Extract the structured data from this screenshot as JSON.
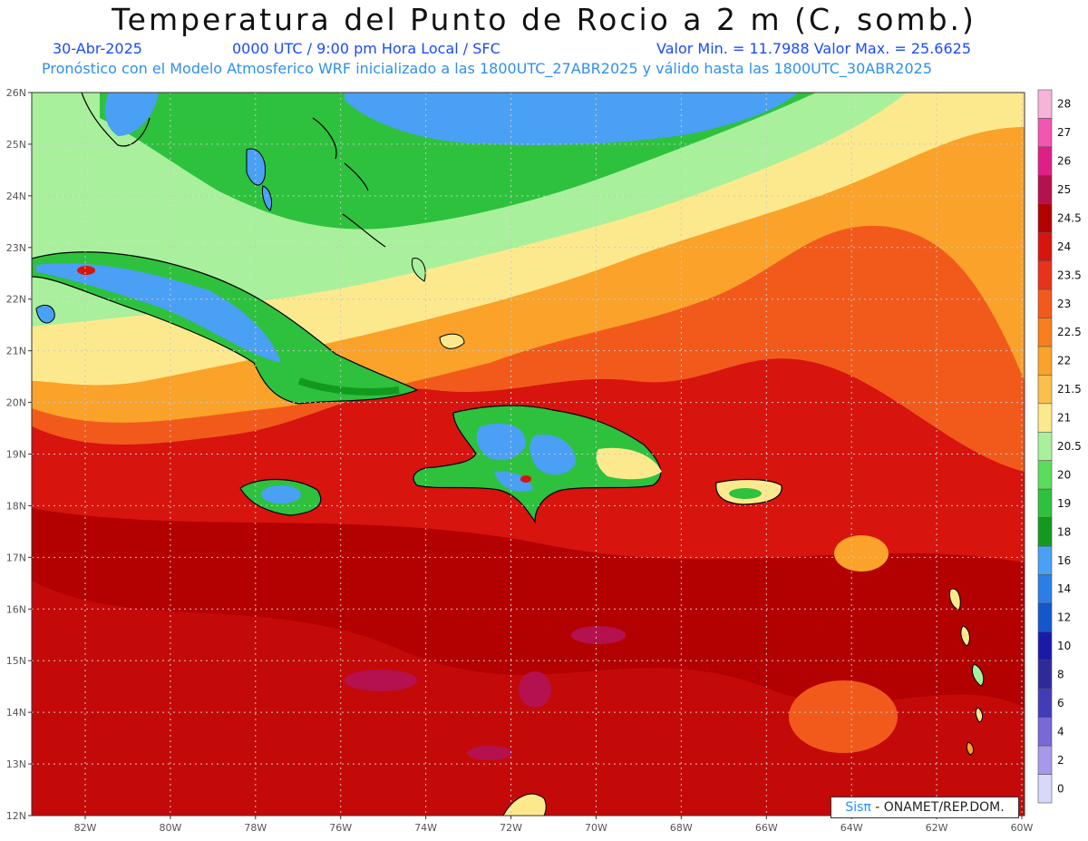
{
  "header": {
    "title": "Temperatura del Punto de Rocio a 2 m (C, somb.)",
    "date": "30-Abr-2025",
    "time": "0000 UTC / 9:00 pm Hora Local / SFC",
    "min_max": "Valor Min. = 11.7988  Valor Max. = 25.6625",
    "model_line": "Pronóstico con el Modelo Atmosferico WRF inicializado a las 1800UTC_27ABR2025 y válido hasta las  1800UTC_30ABR2025"
  },
  "axes": {
    "lat_labels": [
      "26N",
      "25N",
      "24N",
      "23N",
      "22N",
      "21N",
      "20N",
      "19N",
      "18N",
      "17N",
      "16N",
      "15N",
      "14N",
      "13N",
      "12N"
    ],
    "lon_labels": [
      "82W",
      "80W",
      "78W",
      "76W",
      "74W",
      "72W",
      "70W",
      "68W",
      "66W",
      "64W",
      "62W",
      "60W"
    ]
  },
  "colorbar": {
    "labels": [
      "28",
      "27",
      "26",
      "25",
      "24.5",
      "24",
      "23.5",
      "23",
      "22.5",
      "22",
      "21.5",
      "21",
      "20.5",
      "20",
      "19",
      "18",
      "16",
      "14",
      "12",
      "10",
      "8",
      "6",
      "4",
      "2",
      "0"
    ],
    "colors": [
      "#f7b4d8",
      "#f255b2",
      "#e01f86",
      "#b5114f",
      "#b30000",
      "#d7140d",
      "#e8321a",
      "#f25a1c",
      "#f87f1d",
      "#faa22a",
      "#fbc04b",
      "#fde98d",
      "#a9f09c",
      "#5cdc5c",
      "#2ec13e",
      "#129a1f",
      "#4aa0f5",
      "#2b7ee6",
      "#1457c8",
      "#1a1aa8",
      "#2d2a9a",
      "#433cb8",
      "#7868d8",
      "#a798ec",
      "#d8d8f8"
    ]
  },
  "map_colors": {
    "ocean_red": "#d7140d",
    "dark_red": "#b30000",
    "orange": "#f25a1c",
    "light_orange": "#faa22a",
    "yellow": "#fde98d",
    "light_green": "#a9f09c",
    "green": "#2ec13e",
    "dark_green": "#129a1f",
    "blue": "#4aa0f5",
    "magenta": "#b5114f"
  },
  "credit": {
    "brand": "Sisπ",
    "org": " - ONAMET/REP.DOM."
  }
}
